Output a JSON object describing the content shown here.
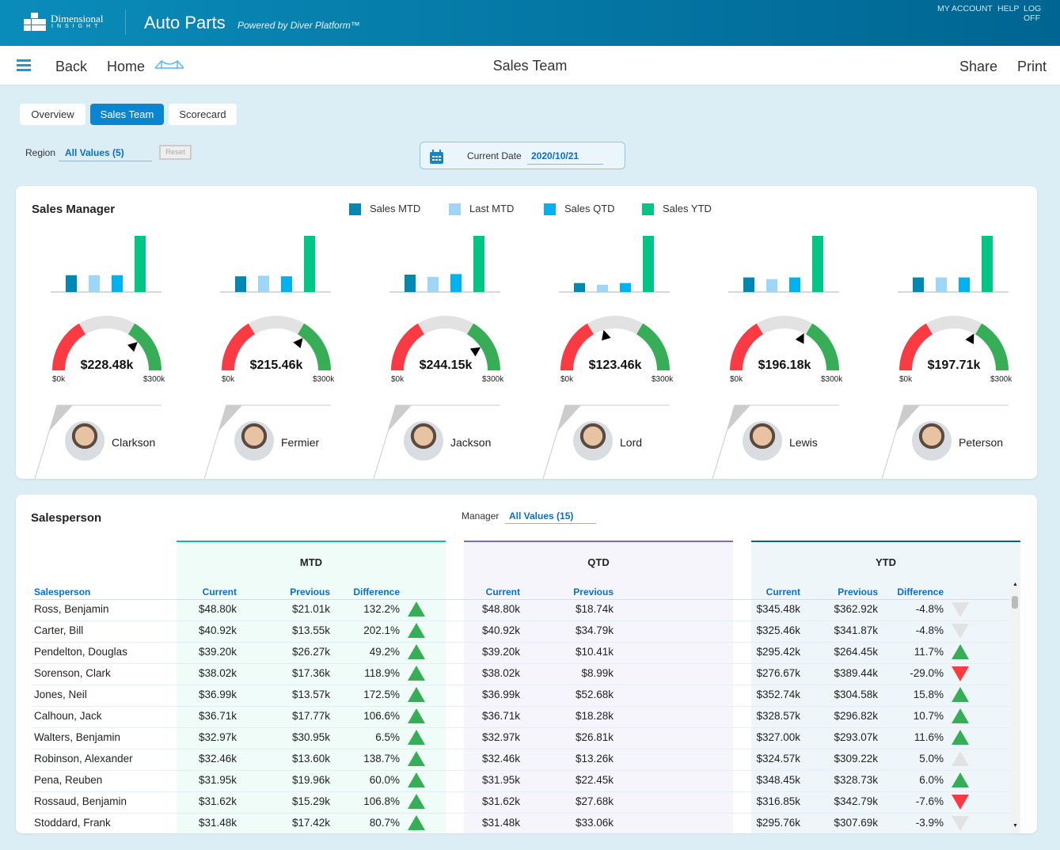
{
  "header": {
    "logo_line1": "Dimensional",
    "logo_line2": "INSIGHT",
    "app_title": "Auto Parts",
    "powered_by": "Powered by Diver Platform™",
    "links": [
      "MY ACCOUNT",
      "HELP",
      "LOG OFF"
    ]
  },
  "nav": {
    "back": "Back",
    "home": "Home",
    "title": "Sales Team",
    "share": "Share",
    "print": "Print"
  },
  "tabs": [
    {
      "label": "Overview",
      "active": false
    },
    {
      "label": "Sales Team",
      "active": true
    },
    {
      "label": "Scorecard",
      "active": false
    }
  ],
  "filters": {
    "region_label": "Region",
    "region_value": "All Values (5)",
    "reset": "Reset",
    "date_label": "Current Date",
    "date_value": "2020/10/21"
  },
  "colors": {
    "sales_mtd": "#0088b4",
    "last_mtd": "#9fd6f7",
    "sales_qtd": "#00b2f0",
    "sales_ytd": "#00c584",
    "gauge_low": "#fb3a44",
    "gauge_mid": "#e2e2e2",
    "gauge_high": "#37ad57"
  },
  "managers_panel": {
    "title": "Sales Manager",
    "legend": [
      "Sales MTD",
      "Last MTD",
      "Sales QTD",
      "Sales YTD"
    ],
    "gauge_min": "$0k",
    "gauge_max": "$300k",
    "managers": [
      {
        "name": "Clarkson",
        "gauge_value": "$228.48k",
        "gauge_fraction": 0.762,
        "bars_relative": [
          0.3,
          0.3,
          0.3,
          1.0
        ]
      },
      {
        "name": "Fermier",
        "gauge_value": "$215.46k",
        "gauge_fraction": 0.718,
        "bars_relative": [
          0.28,
          0.29,
          0.28,
          1.0
        ]
      },
      {
        "name": "Jackson",
        "gauge_value": "$244.15k",
        "gauge_fraction": 0.814,
        "bars_relative": [
          0.31,
          0.27,
          0.32,
          1.0
        ]
      },
      {
        "name": "Lord",
        "gauge_value": "$123.46k",
        "gauge_fraction": 0.412,
        "bars_relative": [
          0.16,
          0.13,
          0.16,
          1.0
        ]
      },
      {
        "name": "Lewis",
        "gauge_value": "$196.18k",
        "gauge_fraction": 0.654,
        "bars_relative": [
          0.26,
          0.23,
          0.26,
          1.0
        ]
      },
      {
        "name": "Peterson",
        "gauge_value": "$197.71k",
        "gauge_fraction": 0.659,
        "bars_relative": [
          0.26,
          0.26,
          0.26,
          1.0
        ]
      }
    ]
  },
  "salesperson_panel": {
    "title": "Salesperson",
    "manager_label": "Manager",
    "manager_value": "All Values (15)",
    "groups": [
      "MTD",
      "QTD",
      "YTD"
    ],
    "columns": {
      "name": "Salesperson",
      "current": "Current",
      "previous": "Previous",
      "difference": "Difference"
    },
    "rows": [
      {
        "name": "Ross, Benjamin",
        "mtd": [
          "$48.80k",
          "$21.01k",
          "132.2%",
          "up"
        ],
        "qtd": [
          "$48.80k",
          "$18.74k"
        ],
        "ytd": [
          "$345.48k",
          "$362.92k",
          "-4.8%",
          "down-neutral"
        ]
      },
      {
        "name": "Carter, Bill",
        "mtd": [
          "$40.92k",
          "$13.55k",
          "202.1%",
          "up"
        ],
        "qtd": [
          "$40.92k",
          "$34.79k"
        ],
        "ytd": [
          "$325.46k",
          "$341.87k",
          "-4.8%",
          "down-neutral"
        ]
      },
      {
        "name": "Pendelton, Douglas",
        "mtd": [
          "$39.20k",
          "$26.27k",
          "49.2%",
          "up"
        ],
        "qtd": [
          "$39.20k",
          "$10.41k"
        ],
        "ytd": [
          "$295.42k",
          "$264.45k",
          "11.7%",
          "up"
        ]
      },
      {
        "name": "Sorenson, Clark",
        "mtd": [
          "$38.02k",
          "$17.36k",
          "118.9%",
          "up"
        ],
        "qtd": [
          "$38.02k",
          "$8.99k"
        ],
        "ytd": [
          "$276.67k",
          "$389.44k",
          "-29.0%",
          "down"
        ]
      },
      {
        "name": "Jones, Neil",
        "mtd": [
          "$36.99k",
          "$13.57k",
          "172.5%",
          "up"
        ],
        "qtd": [
          "$36.99k",
          "$52.68k"
        ],
        "ytd": [
          "$352.74k",
          "$304.58k",
          "15.8%",
          "up"
        ]
      },
      {
        "name": "Calhoun, Jack",
        "mtd": [
          "$36.71k",
          "$17.77k",
          "106.6%",
          "up"
        ],
        "qtd": [
          "$36.71k",
          "$18.28k"
        ],
        "ytd": [
          "$328.57k",
          "$296.82k",
          "10.7%",
          "up"
        ]
      },
      {
        "name": "Walters, Benjamin",
        "mtd": [
          "$32.97k",
          "$30.95k",
          "6.5%",
          "up"
        ],
        "qtd": [
          "$32.97k",
          "$26.81k"
        ],
        "ytd": [
          "$327.00k",
          "$293.07k",
          "11.6%",
          "up"
        ]
      },
      {
        "name": "Robinson, Alexander",
        "mtd": [
          "$32.46k",
          "$13.60k",
          "138.7%",
          "up"
        ],
        "qtd": [
          "$32.46k",
          "$13.26k"
        ],
        "ytd": [
          "$324.57k",
          "$309.22k",
          "5.0%",
          "up-neutral"
        ]
      },
      {
        "name": "Pena, Reuben",
        "mtd": [
          "$31.95k",
          "$19.96k",
          "60.0%",
          "up"
        ],
        "qtd": [
          "$31.95k",
          "$22.45k"
        ],
        "ytd": [
          "$348.45k",
          "$328.73k",
          "6.0%",
          "up"
        ]
      },
      {
        "name": "Rossaud, Benjamin",
        "mtd": [
          "$31.62k",
          "$15.29k",
          "106.8%",
          "up"
        ],
        "qtd": [
          "$31.62k",
          "$27.68k"
        ],
        "ytd": [
          "$316.85k",
          "$342.79k",
          "-7.6%",
          "down"
        ]
      },
      {
        "name": "Stoddard, Frank",
        "mtd": [
          "$31.48k",
          "$17.42k",
          "80.7%",
          "up"
        ],
        "qtd": [
          "$31.48k",
          "$33.06k"
        ],
        "ytd": [
          "$295.76k",
          "$307.69k",
          "-3.9%",
          "down-neutral"
        ]
      }
    ]
  }
}
